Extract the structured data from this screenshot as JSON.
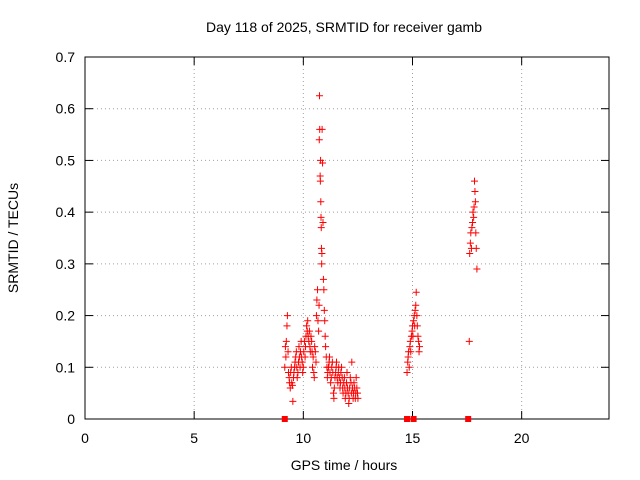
{
  "chart_data": {
    "type": "scatter",
    "title": "Day 118 of 2025, SRMTID for receiver gamb",
    "xlabel": "GPS time / hours",
    "ylabel": "SRMTID / TECUs",
    "xlim": [
      0,
      24
    ],
    "ylim": [
      0,
      0.7
    ],
    "xticks": [
      0,
      5,
      10,
      15,
      20
    ],
    "yticks": [
      0,
      0.1,
      0.2,
      0.3,
      0.4,
      0.5,
      0.6,
      0.7
    ],
    "grid": true,
    "legend": "none",
    "marker": "plus",
    "color": "#ff0000",
    "series": [
      {
        "points": [
          [
            9.15,
            0.1
          ],
          [
            9.18,
            0.14
          ],
          [
            9.2,
            0.12
          ],
          [
            9.22,
            0.15
          ],
          [
            9.25,
            0.18
          ],
          [
            9.27,
            0.2
          ],
          [
            9.3,
            0.13
          ],
          [
            9.32,
            0.09
          ],
          [
            9.35,
            0.08
          ],
          [
            9.37,
            0.07
          ],
          [
            9.4,
            0.06
          ],
          [
            9.42,
            0.09
          ],
          [
            9.45,
            0.1
          ],
          [
            9.47,
            0.07
          ],
          [
            9.5,
            0.065
          ],
          [
            9.52,
            0.034
          ],
          [
            9.55,
            0.08
          ],
          [
            9.57,
            0.09
          ],
          [
            9.6,
            0.1
          ],
          [
            9.62,
            0.11
          ],
          [
            9.65,
            0.12
          ],
          [
            9.68,
            0.13
          ],
          [
            9.7,
            0.1
          ],
          [
            9.72,
            0.08
          ],
          [
            9.75,
            0.09
          ],
          [
            9.78,
            0.11
          ],
          [
            9.8,
            0.14
          ],
          [
            9.82,
            0.12
          ],
          [
            9.85,
            0.1
          ],
          [
            9.87,
            0.13
          ],
          [
            9.9,
            0.15
          ],
          [
            9.92,
            0.12
          ],
          [
            9.95,
            0.11
          ],
          [
            9.97,
            0.09
          ],
          [
            10.0,
            0.1
          ],
          [
            10.02,
            0.13
          ],
          [
            10.05,
            0.15
          ],
          [
            10.08,
            0.12
          ],
          [
            10.1,
            0.14
          ],
          [
            10.12,
            0.16
          ],
          [
            10.15,
            0.18
          ],
          [
            10.18,
            0.17
          ],
          [
            10.2,
            0.19
          ],
          [
            10.22,
            0.16
          ],
          [
            10.25,
            0.15
          ],
          [
            10.28,
            0.17
          ],
          [
            10.3,
            0.14
          ],
          [
            10.32,
            0.13
          ],
          [
            10.35,
            0.16
          ],
          [
            10.38,
            0.15
          ],
          [
            10.4,
            0.13
          ],
          [
            10.42,
            0.1
          ],
          [
            10.45,
            0.12
          ],
          [
            10.48,
            0.09
          ],
          [
            10.5,
            0.08
          ],
          [
            10.52,
            0.14
          ],
          [
            10.55,
            0.13
          ],
          [
            10.58,
            0.11
          ],
          [
            10.6,
            0.2
          ],
          [
            10.62,
            0.23
          ],
          [
            10.65,
            0.25
          ],
          [
            10.67,
            0.19
          ],
          [
            10.7,
            0.17
          ],
          [
            10.72,
            0.22
          ],
          [
            10.73,
            0.54
          ],
          [
            10.74,
            0.625
          ],
          [
            10.75,
            0.56
          ],
          [
            10.77,
            0.47
          ],
          [
            10.78,
            0.46
          ],
          [
            10.79,
            0.5
          ],
          [
            10.8,
            0.42
          ],
          [
            10.81,
            0.39
          ],
          [
            10.82,
            0.37
          ],
          [
            10.83,
            0.33
          ],
          [
            10.84,
            0.3
          ],
          [
            10.85,
            0.32
          ],
          [
            10.86,
            0.56
          ],
          [
            10.88,
            0.495
          ],
          [
            10.9,
            0.38
          ],
          [
            10.92,
            0.27
          ],
          [
            10.94,
            0.25
          ],
          [
            10.96,
            0.21
          ],
          [
            10.98,
            0.19
          ],
          [
            11.0,
            0.16
          ],
          [
            11.02,
            0.14
          ],
          [
            11.05,
            0.12
          ],
          [
            11.08,
            0.1
          ],
          [
            11.1,
            0.08
          ],
          [
            11.12,
            0.09
          ],
          [
            11.15,
            0.1
          ],
          [
            11.18,
            0.11
          ],
          [
            11.2,
            0.12
          ],
          [
            11.22,
            0.09
          ],
          [
            11.25,
            0.07
          ],
          [
            11.28,
            0.08
          ],
          [
            11.3,
            0.1
          ],
          [
            11.33,
            0.11
          ],
          [
            11.35,
            0.09
          ],
          [
            11.38,
            0.05
          ],
          [
            11.4,
            0.04
          ],
          [
            11.42,
            0.06
          ],
          [
            11.45,
            0.08
          ],
          [
            11.48,
            0.09
          ],
          [
            11.5,
            0.1
          ],
          [
            11.52,
            0.11
          ],
          [
            11.55,
            0.08
          ],
          [
            11.58,
            0.07
          ],
          [
            11.6,
            0.09
          ],
          [
            11.62,
            0.1
          ],
          [
            11.65,
            0.08
          ],
          [
            11.68,
            0.06
          ],
          [
            11.7,
            0.07
          ],
          [
            11.72,
            0.09
          ],
          [
            11.75,
            0.1
          ],
          [
            11.78,
            0.08
          ],
          [
            11.8,
            0.06
          ],
          [
            11.82,
            0.05
          ],
          [
            11.85,
            0.07
          ],
          [
            11.88,
            0.08
          ],
          [
            11.9,
            0.06
          ],
          [
            11.92,
            0.04
          ],
          [
            11.95,
            0.05
          ],
          [
            11.98,
            0.07
          ],
          [
            12.0,
            0.09
          ],
          [
            12.02,
            0.06
          ],
          [
            12.05,
            0.05
          ],
          [
            12.08,
            0.03
          ],
          [
            12.1,
            0.04
          ],
          [
            12.12,
            0.06
          ],
          [
            12.15,
            0.08
          ],
          [
            12.18,
            0.07
          ],
          [
            12.2,
            0.05
          ],
          [
            12.22,
            0.11
          ],
          [
            12.25,
            0.06
          ],
          [
            12.28,
            0.04
          ],
          [
            12.3,
            0.05
          ],
          [
            12.32,
            0.07
          ],
          [
            12.35,
            0.06
          ],
          [
            12.38,
            0.04
          ],
          [
            12.4,
            0.05
          ],
          [
            12.42,
            0.08
          ],
          [
            12.45,
            0.06
          ],
          [
            12.48,
            0.05
          ],
          [
            12.5,
            0.04
          ],
          [
            14.75,
            0.09
          ],
          [
            14.78,
            0.11
          ],
          [
            14.8,
            0.12
          ],
          [
            14.82,
            0.13
          ],
          [
            14.85,
            0.1
          ],
          [
            14.88,
            0.14
          ],
          [
            14.9,
            0.15
          ],
          [
            14.92,
            0.13
          ],
          [
            14.95,
            0.16
          ],
          [
            14.98,
            0.17
          ],
          [
            15.0,
            0.18
          ],
          [
            15.02,
            0.16
          ],
          [
            15.05,
            0.19
          ],
          [
            15.08,
            0.2
          ],
          [
            15.1,
            0.18
          ],
          [
            15.12,
            0.21
          ],
          [
            15.15,
            0.22
          ],
          [
            15.17,
            0.245
          ],
          [
            15.2,
            0.2
          ],
          [
            15.22,
            0.18
          ],
          [
            15.25,
            0.16
          ],
          [
            15.28,
            0.15
          ],
          [
            15.3,
            0.13
          ],
          [
            15.32,
            0.14
          ],
          [
            17.6,
            0.15
          ],
          [
            17.62,
            0.32
          ],
          [
            17.65,
            0.34
          ],
          [
            17.67,
            0.36
          ],
          [
            17.7,
            0.33
          ],
          [
            17.72,
            0.37
          ],
          [
            17.75,
            0.38
          ],
          [
            17.77,
            0.4
          ],
          [
            17.8,
            0.39
          ],
          [
            17.82,
            0.41
          ],
          [
            17.84,
            0.46
          ],
          [
            17.86,
            0.44
          ],
          [
            17.88,
            0.42
          ],
          [
            17.9,
            0.36
          ],
          [
            17.92,
            0.33
          ],
          [
            17.95,
            0.29
          ]
        ]
      }
    ],
    "baseline_markers": [
      9.15,
      14.75,
      15.05,
      17.55
    ]
  }
}
